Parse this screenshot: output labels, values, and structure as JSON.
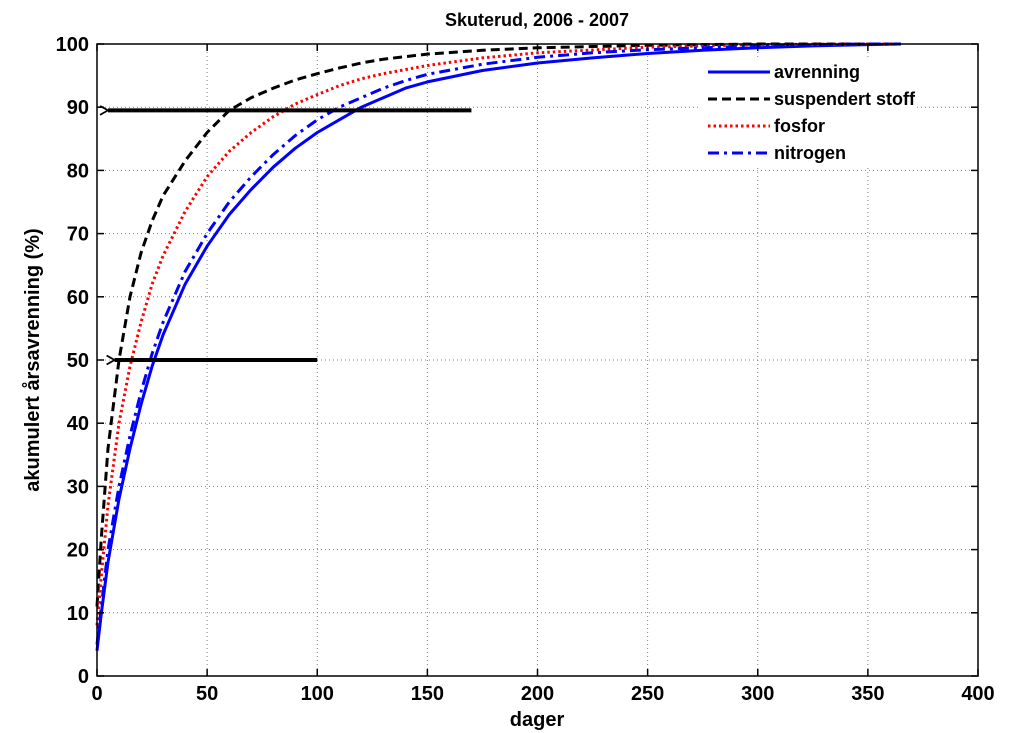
{
  "chart_data": {
    "type": "line",
    "title": "Skuterud, 2006 - 2007",
    "xlabel": "dager",
    "ylabel": "akumulert årsavrenning (%)",
    "xlim": [
      0,
      400
    ],
    "ylim": [
      0,
      100
    ],
    "xticks": [
      0,
      50,
      100,
      150,
      200,
      250,
      300,
      350,
      400
    ],
    "yticks": [
      0,
      10,
      20,
      30,
      40,
      50,
      60,
      70,
      80,
      90,
      100
    ],
    "grid": true,
    "legend_position": "top-right",
    "series": [
      {
        "name": "avrenning",
        "color": "#0000ff",
        "dash": "solid",
        "x": [
          0,
          2,
          5,
          10,
          15,
          20,
          25,
          30,
          40,
          50,
          60,
          70,
          80,
          90,
          100,
          110,
          120,
          130,
          140,
          150,
          175,
          200,
          225,
          250,
          275,
          300,
          325,
          350,
          365
        ],
        "y": [
          4,
          10,
          18,
          28,
          36,
          43,
          49,
          54,
          62,
          68,
          73,
          77,
          80.5,
          83.5,
          86,
          88,
          90,
          91.5,
          93,
          94,
          95.8,
          97,
          97.8,
          98.5,
          99,
          99.4,
          99.7,
          99.9,
          100
        ]
      },
      {
        "name": "suspendert stoff",
        "color": "#000000",
        "dash": "dashed",
        "x": [
          0,
          2,
          5,
          10,
          15,
          20,
          25,
          30,
          40,
          50,
          60,
          70,
          80,
          90,
          100,
          110,
          120,
          130,
          150,
          175,
          200,
          250,
          300,
          350,
          365
        ],
        "y": [
          11,
          22,
          36,
          50,
          60,
          67,
          72,
          76,
          81.5,
          86,
          89.5,
          91.5,
          93,
          94.3,
          95.3,
          96.2,
          97,
          97.6,
          98.4,
          99,
          99.4,
          99.8,
          100,
          100,
          100
        ]
      },
      {
        "name": "fosfor",
        "color": "#ff0000",
        "dash": "dotted",
        "x": [
          0,
          2,
          5,
          10,
          15,
          20,
          25,
          30,
          40,
          50,
          60,
          70,
          80,
          90,
          100,
          110,
          120,
          130,
          150,
          175,
          200,
          250,
          300,
          350,
          365
        ],
        "y": [
          8,
          16,
          27,
          40,
          49,
          56,
          62,
          66.5,
          73.5,
          79,
          83,
          86,
          88.5,
          90.5,
          92,
          93.4,
          94.5,
          95.3,
          96.6,
          97.8,
          98.6,
          99.5,
          99.9,
          100,
          100
        ]
      },
      {
        "name": "nitrogen",
        "color": "#0000ff",
        "dash": "dashdot",
        "x": [
          0,
          2,
          5,
          10,
          15,
          20,
          25,
          30,
          40,
          50,
          60,
          70,
          80,
          90,
          100,
          110,
          120,
          130,
          140,
          150,
          175,
          200,
          225,
          250,
          275,
          300,
          325,
          350,
          365
        ],
        "y": [
          5,
          11,
          20,
          30,
          38,
          45,
          51,
          56,
          64,
          70,
          75,
          79,
          82.5,
          85.5,
          88,
          90,
          91.5,
          93,
          94.2,
          95.2,
          96.8,
          97.9,
          98.6,
          99.1,
          99.4,
          99.7,
          99.9,
          100,
          100
        ]
      }
    ],
    "annotations": [
      {
        "type": "arrow",
        "from": [
          170,
          89.5
        ],
        "to": [
          5,
          89.5
        ],
        "color": "#000000"
      },
      {
        "type": "arrow",
        "from": [
          100,
          50
        ],
        "to": [
          8,
          50
        ],
        "color": "#000000"
      }
    ]
  }
}
